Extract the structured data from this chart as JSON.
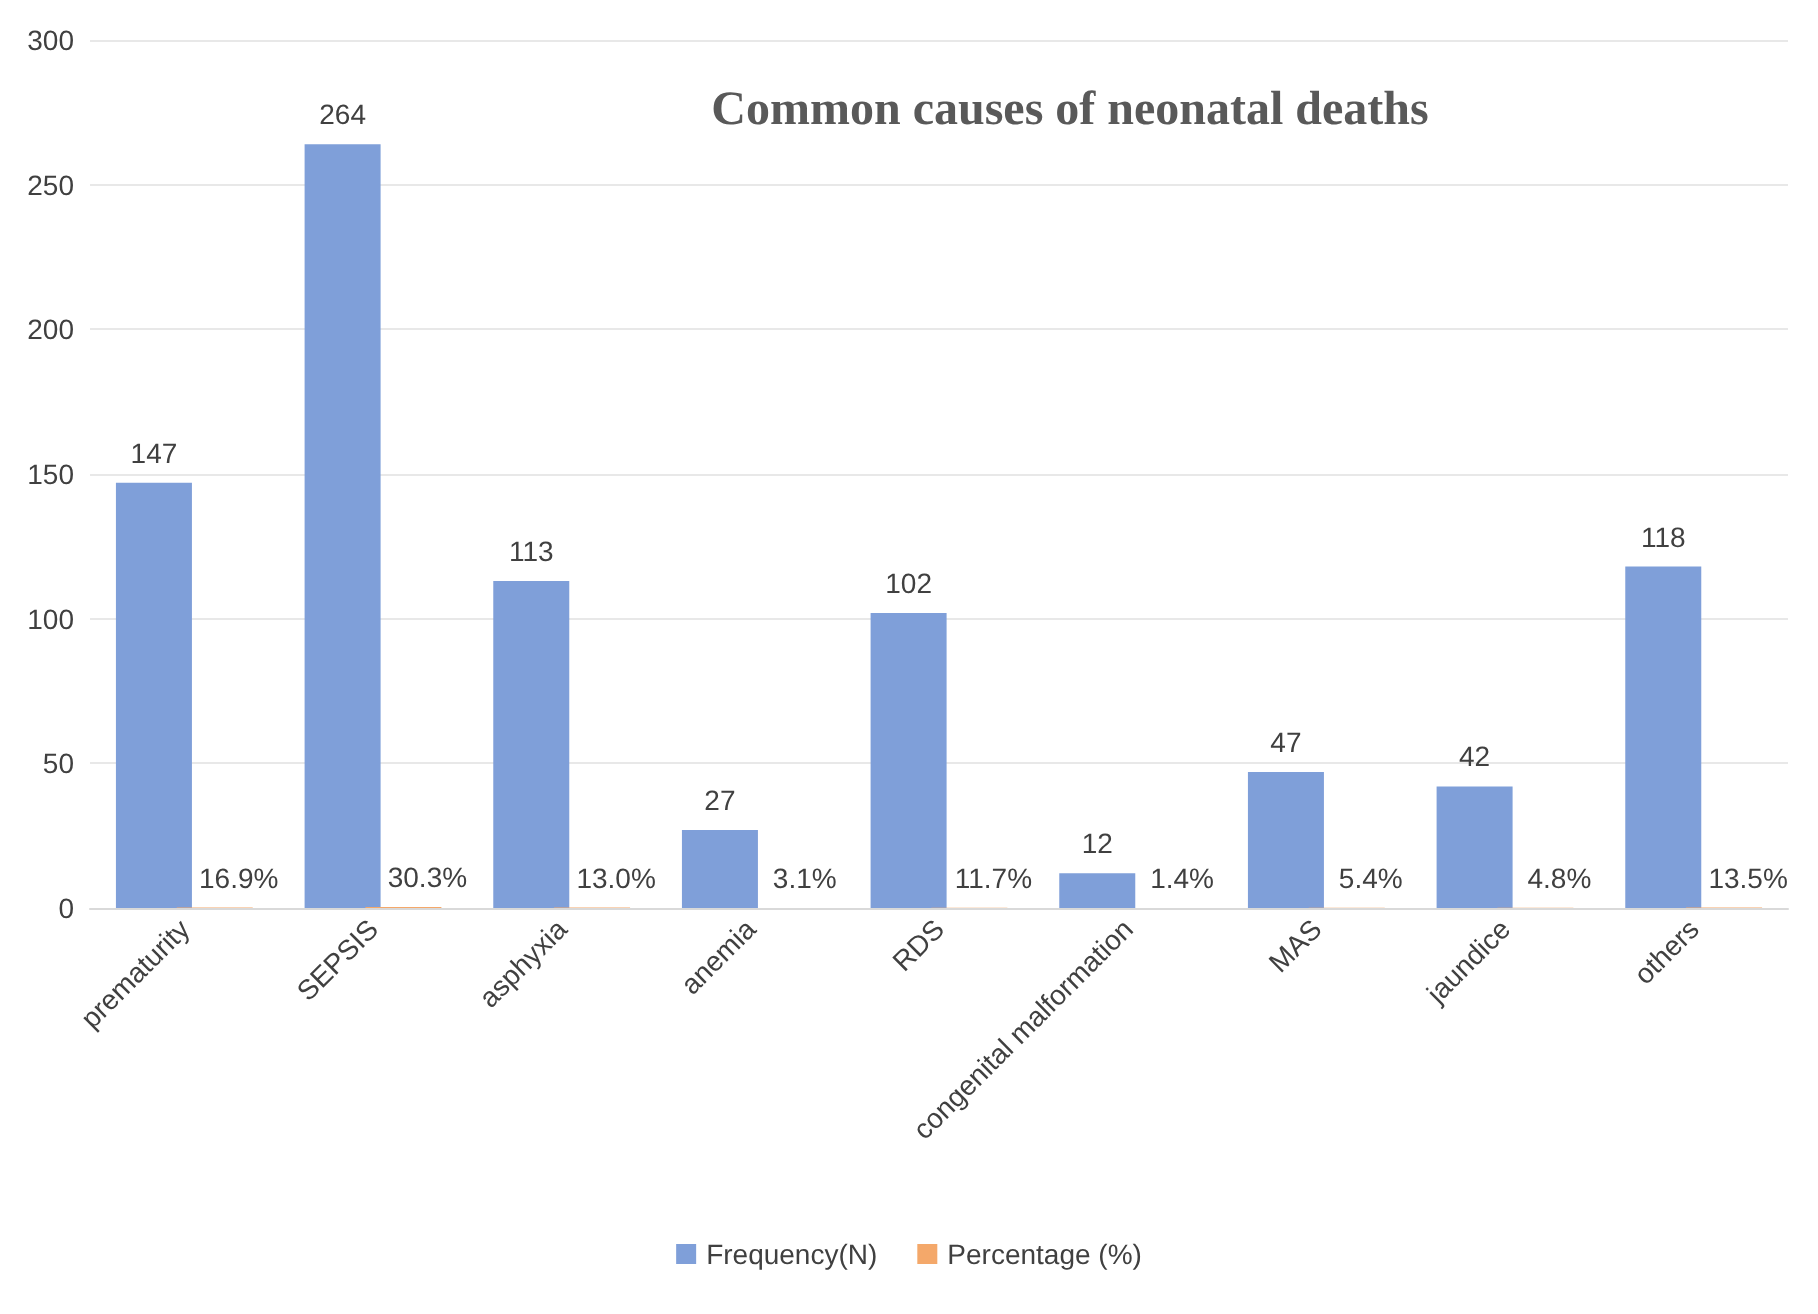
{
  "chart_data": {
    "type": "bar",
    "title": "Common causes of neonatal deaths",
    "categories": [
      "prematurity",
      "SEPSIS",
      "asphyxia",
      "anemia",
      "RDS",
      "congenital malformation",
      "MAS",
      "jaundice",
      "others"
    ],
    "series": [
      {
        "name": "Frequency(N)",
        "color": "#7f9fd9",
        "values": [
          147,
          264,
          113,
          27,
          102,
          12,
          47,
          42,
          118
        ],
        "data_labels": true
      },
      {
        "name": "Percentage (%)",
        "color": "#f4a86a",
        "values": [
          0.169,
          0.303,
          0.13,
          0.031,
          0.117,
          0.014,
          0.054,
          0.048,
          0.135
        ],
        "value_labels": [
          "16.9%",
          "30.3%",
          "13.0%",
          "3.1%",
          "11.7%",
          "1.4%",
          "5.4%",
          "4.8%",
          "13.5%"
        ]
      }
    ],
    "ylim": [
      0,
      300
    ],
    "yticks": [
      0,
      50,
      100,
      150,
      200,
      250,
      300
    ],
    "grid": "y",
    "legend": "bottom"
  }
}
